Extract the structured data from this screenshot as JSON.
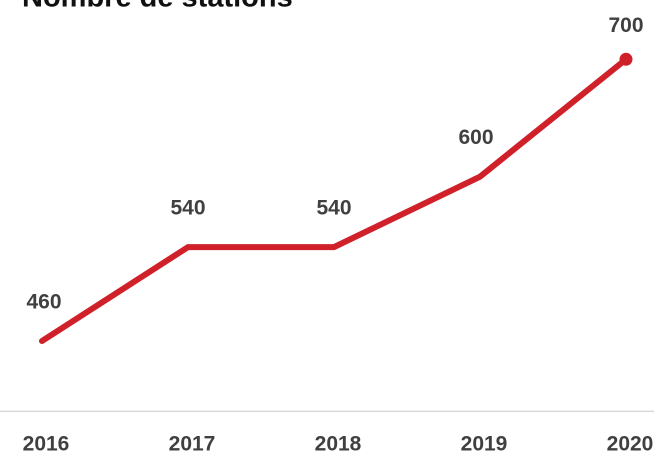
{
  "chart_data": {
    "type": "line",
    "title": "Nombre de stations",
    "categories": [
      "2016",
      "2017",
      "2018",
      "2019",
      "2020"
    ],
    "values": [
      460,
      540,
      540,
      600,
      700
    ],
    "color": "#d0202a",
    "ylim": [
      400,
      750
    ]
  }
}
